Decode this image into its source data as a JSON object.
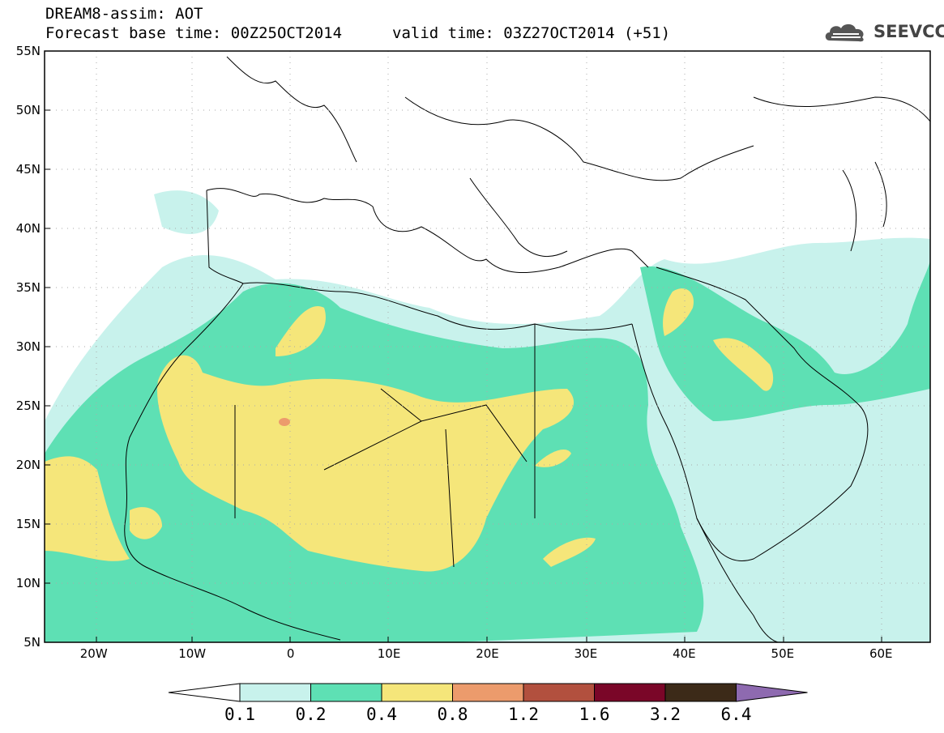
{
  "header": {
    "title_line1": "DREAM8-assim: AOT",
    "forecast_base": "Forecast base time: 00Z25OCT2014",
    "valid_time": "valid time: 03Z27OCT2014 (+51)"
  },
  "logo": {
    "text": "SEEVCCC",
    "icon": "cloud-logo-icon"
  },
  "map": {
    "lat_ticks": [
      "55N",
      "50N",
      "45N",
      "40N",
      "35N",
      "30N",
      "25N",
      "20N",
      "15N",
      "10N",
      "5N"
    ],
    "lon_ticks": [
      "20W",
      "10W",
      "0",
      "10E",
      "20E",
      "30E",
      "40E",
      "50E",
      "60E"
    ],
    "lat_range": [
      5,
      55
    ],
    "lon_range": [
      -25,
      65
    ],
    "grid": true
  },
  "colorbar": {
    "labels": [
      "0.1",
      "0.2",
      "0.4",
      "0.8",
      "1.2",
      "1.6",
      "3.2",
      "6.4"
    ],
    "colors": [
      "#ffffff",
      "#c8f2ec",
      "#5ee0b4",
      "#f5e67a",
      "#ec9b6c",
      "#b2503e",
      "#7a0628",
      "#3c2a18",
      "#8e6ab0"
    ]
  },
  "palette": {
    "c1": "#c8f2ec",
    "c2": "#5ee0b4",
    "c3": "#f5e67a",
    "c4": "#ec9b6c"
  }
}
